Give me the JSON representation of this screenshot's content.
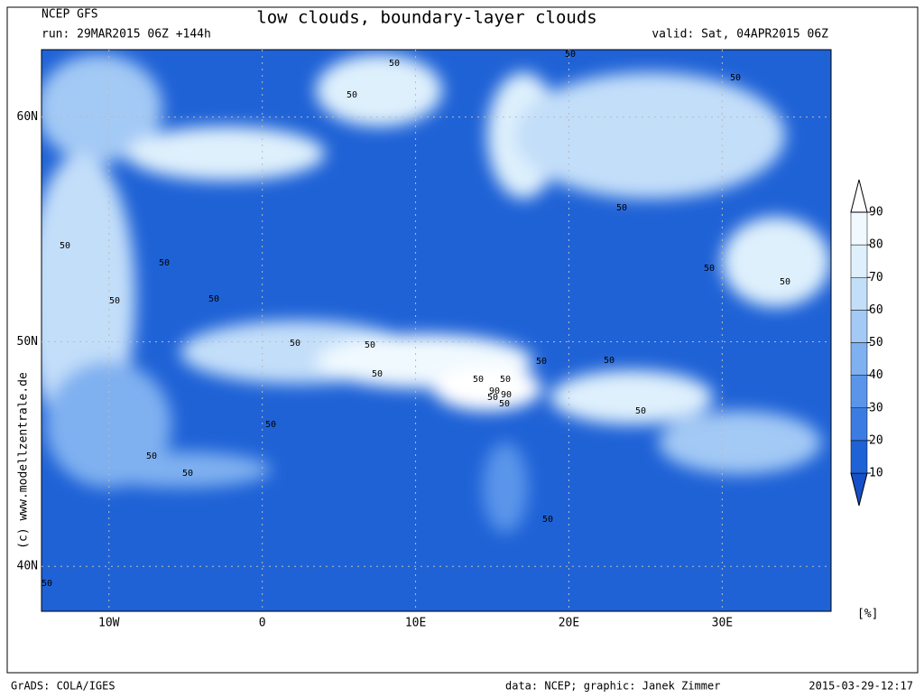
{
  "header": {
    "model": "NCEP GFS",
    "run": "run: 29MAR2015 06Z +144h",
    "title": "low clouds, boundary-layer clouds",
    "valid": "valid: Sat, 04APR2015 06Z"
  },
  "map": {
    "lonlim": [
      -14.4,
      37.1
    ],
    "latlim": [
      38,
      63
    ],
    "lon_ticks": [
      {
        "value": -10,
        "label": "10W"
      },
      0,
      {
        "value": 10,
        "label": "10E"
      },
      {
        "value": 20,
        "label": "20E"
      },
      {
        "value": 30,
        "label": "30E"
      }
    ],
    "lat_ticks": [
      {
        "value": 40,
        "label": "40N"
      },
      {
        "value": 50,
        "label": "50N"
      },
      {
        "value": 60,
        "label": "60N"
      }
    ],
    "grid": true,
    "contour_labels": [
      "50",
      "50",
      "50",
      "50",
      "50",
      "50",
      "50",
      "50",
      "50",
      "50",
      "50",
      "50",
      "50",
      "50",
      "90",
      "50",
      "50",
      "50",
      "50",
      "50",
      "50",
      "50",
      "50",
      "50",
      "50",
      "90",
      "50",
      "50"
    ]
  },
  "colorbar": {
    "levels": [
      10,
      20,
      30,
      40,
      50,
      60,
      70,
      80,
      90
    ],
    "colors": [
      "#1450c8",
      "#1f62d6",
      "#3a7ce2",
      "#5a95ea",
      "#7fb0f0",
      "#a3c9f5",
      "#c3def9",
      "#def0fc",
      "#f0f9fe",
      "#ffffff"
    ],
    "unit": "[%]"
  },
  "credit": "(c) www.modellzentrale.de",
  "footer": {
    "left": "GrADS: COLA/IGES",
    "center": "data: NCEP; graphic: Janek Zimmer",
    "right": "2015-03-29-12:17"
  }
}
